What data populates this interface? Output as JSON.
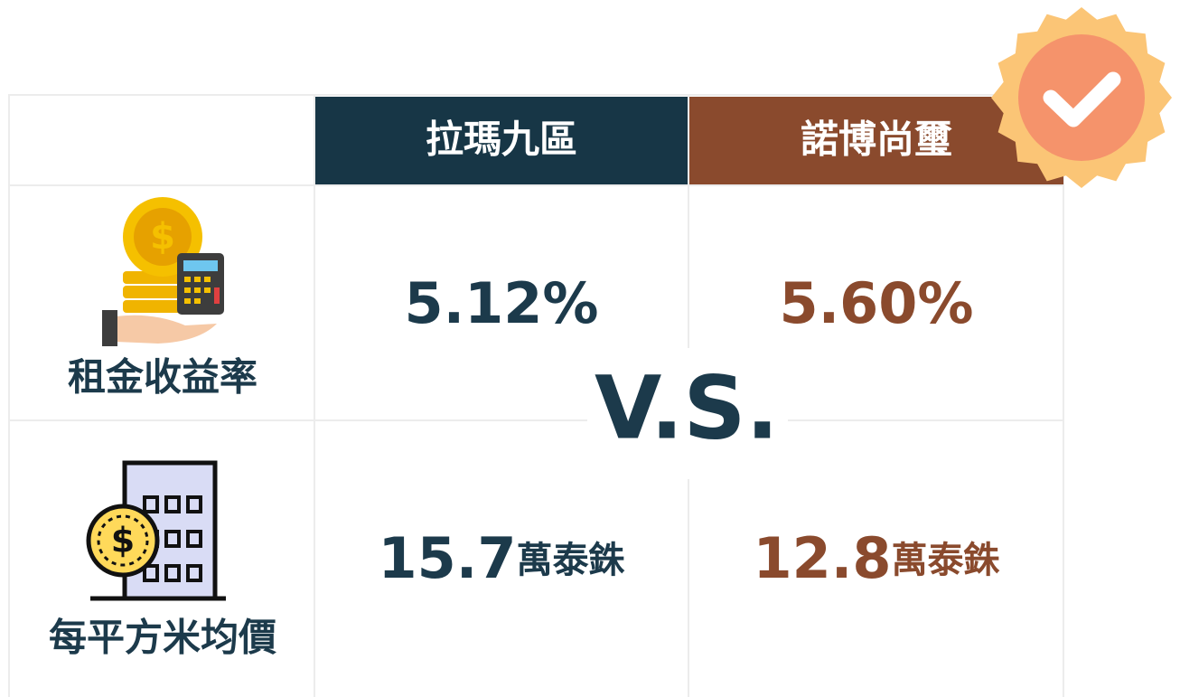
{
  "table": {
    "columns": [
      "拉瑪九區",
      "諾博尚璽"
    ],
    "rows": [
      {
        "label": "租金收益率",
        "cells": [
          {
            "number": "5.12%",
            "unit": ""
          },
          {
            "number": "5.60%",
            "unit": ""
          }
        ]
      },
      {
        "label": "每平方米均價",
        "cells": [
          {
            "number": "15.7",
            "unit": "萬泰銖"
          },
          {
            "number": "12.8",
            "unit": "萬泰銖"
          }
        ]
      }
    ],
    "center": "V.S."
  }
}
